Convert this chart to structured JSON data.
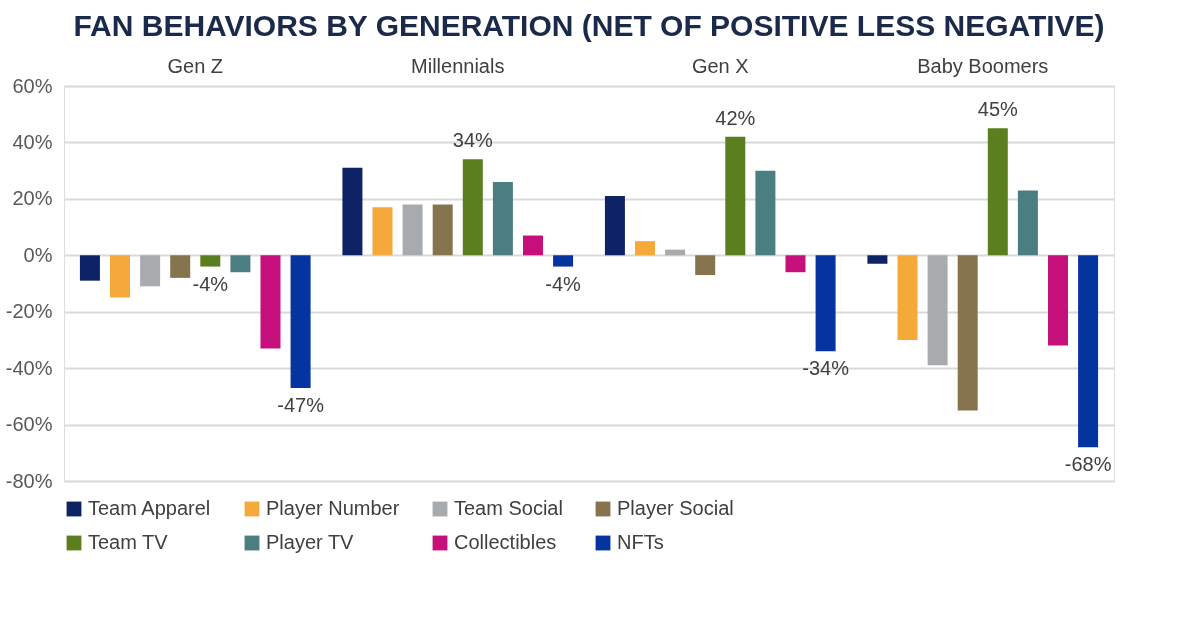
{
  "chart_data": {
    "type": "bar",
    "title": "FAN BEHAVIORS BY GENERATION (NET OF POSITIVE LESS NEGATIVE)",
    "categories": [
      "Gen Z",
      "Millennials",
      "Gen X",
      "Baby Boomers"
    ],
    "series": [
      {
        "name": "Team Apparel",
        "color": "#0d2366",
        "values": [
          -9,
          31,
          21,
          -3
        ]
      },
      {
        "name": "Player Number",
        "color": "#f4a93a",
        "values": [
          -15,
          17,
          5,
          -30
        ]
      },
      {
        "name": "Team Social",
        "color": "#a8abad",
        "values": [
          -11,
          18,
          2,
          -39
        ]
      },
      {
        "name": "Player Social",
        "color": "#85744e",
        "values": [
          -8,
          18,
          -7,
          -55
        ]
      },
      {
        "name": "Team TV",
        "color": "#5b7e1e",
        "values": [
          -4,
          34,
          42,
          45
        ],
        "value_labels": [
          "-4%",
          "34%",
          "42%",
          "45%"
        ]
      },
      {
        "name": "Player TV",
        "color": "#4a7e80",
        "values": [
          -6,
          26,
          30,
          23
        ]
      },
      {
        "name": "Collectibles",
        "color": "#c50f7a",
        "values": [
          -33,
          7,
          -6,
          -32
        ]
      },
      {
        "name": "NFTs",
        "color": "#0533a0",
        "values": [
          -47,
          -4,
          -34,
          -68
        ],
        "value_labels": [
          "-47%",
          "-4%",
          "-34%",
          "-68%"
        ]
      }
    ],
    "ylim": [
      -80,
      60
    ],
    "yticks": [
      {
        "value": -80,
        "label": "-80%"
      },
      {
        "value": -60,
        "label": "-60%"
      },
      {
        "value": -40,
        "label": "-40%"
      },
      {
        "value": -20,
        "label": "-20%"
      },
      {
        "value": 0,
        "label": "0%"
      },
      {
        "value": 20,
        "label": "20%"
      },
      {
        "value": 40,
        "label": "40%"
      },
      {
        "value": 60,
        "label": "60%"
      }
    ],
    "grid": "y",
    "legend": "bottom"
  }
}
